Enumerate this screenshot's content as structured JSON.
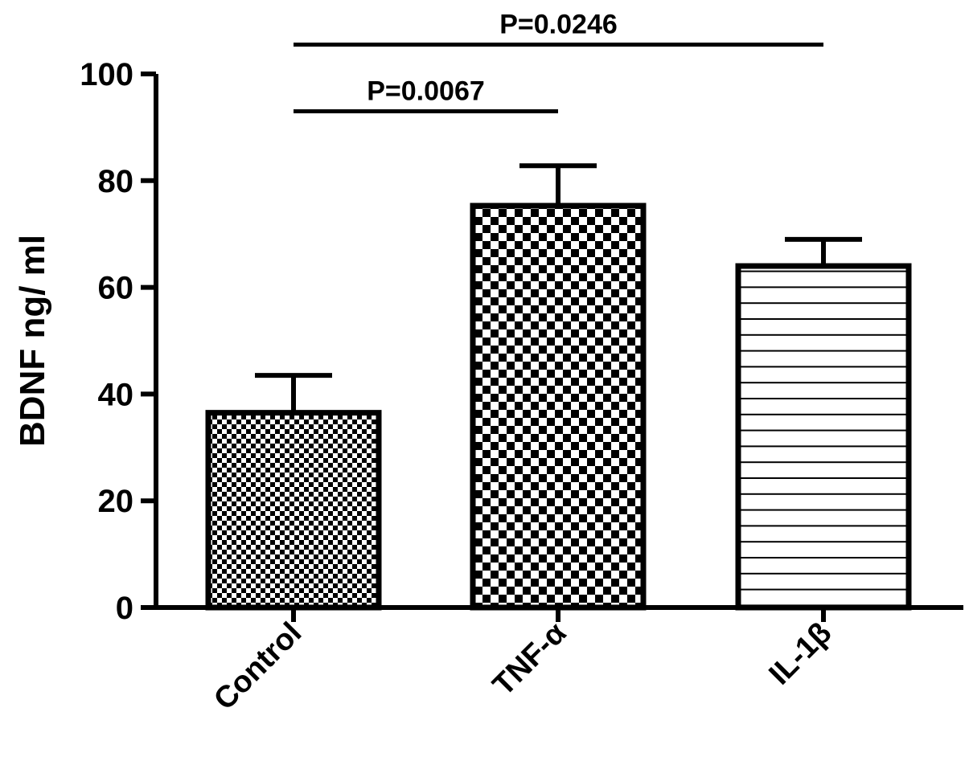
{
  "chart_data": {
    "type": "bar",
    "title": "",
    "xlabel": "",
    "ylabel": "BDNF ng/ ml",
    "categories": [
      "Control",
      "TNF-α",
      "IL-1β"
    ],
    "values": [
      36.5,
      75.3,
      64.0
    ],
    "error_upper": [
      43.5,
      82.8,
      69.0
    ],
    "patterns": [
      "fine-checker",
      "coarse-checker",
      "horizontal-lines"
    ],
    "ylim": [
      0,
      100
    ],
    "yticks": [
      "0",
      "20",
      "40",
      "60",
      "80",
      "100"
    ],
    "grid": false,
    "annotations": [
      {
        "label": "P=0.0067",
        "from": "Control",
        "to": "TNF-α",
        "y": 93
      },
      {
        "label": "P=0.0246",
        "from": "Control",
        "to": "IL-1β",
        "y": 105.5
      }
    ]
  }
}
